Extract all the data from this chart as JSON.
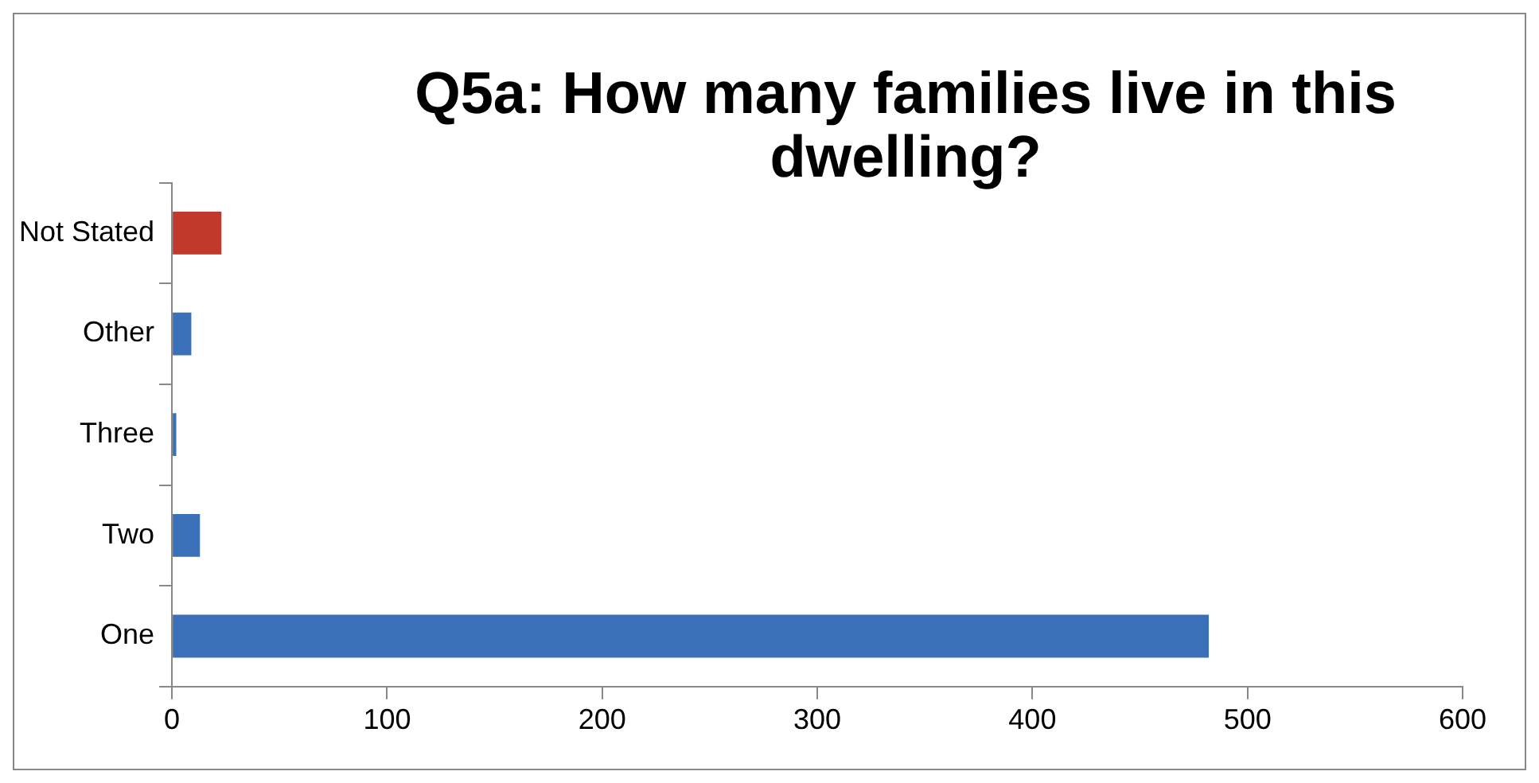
{
  "chart_data": {
    "type": "bar",
    "orientation": "horizontal",
    "title": "Q5a: How many families live in this dwelling?",
    "categories": [
      "Not Stated",
      "Other",
      "Three",
      "Two",
      "One"
    ],
    "values": [
      23,
      9,
      2,
      13,
      482
    ],
    "colors": [
      "#c0392b",
      "#3a70b8",
      "#3a70b8",
      "#3a70b8",
      "#3a70b8"
    ],
    "xlim": [
      0,
      600
    ],
    "xticks": [
      0,
      100,
      200,
      300,
      400,
      500,
      600
    ],
    "grid": false,
    "legend": false
  }
}
